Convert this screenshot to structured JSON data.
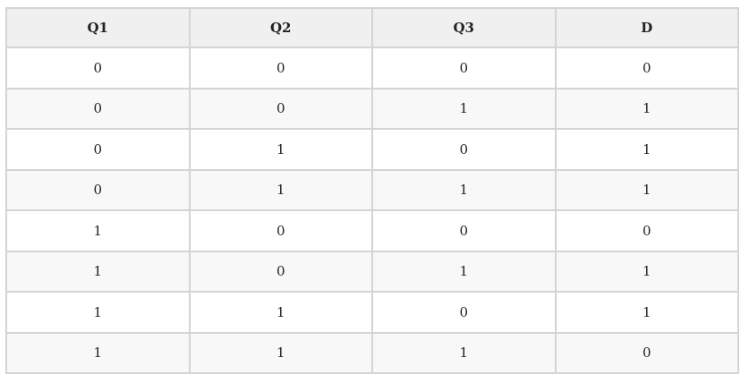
{
  "table": {
    "header": [
      "Q1",
      "Q2",
      "Q3",
      "D"
    ],
    "rows": [
      [
        0,
        0,
        0,
        0
      ],
      [
        0,
        0,
        1,
        1
      ],
      [
        0,
        1,
        0,
        1
      ],
      [
        0,
        1,
        1,
        1
      ],
      [
        1,
        0,
        0,
        0
      ],
      [
        1,
        0,
        1,
        1
      ],
      [
        1,
        1,
        0,
        1
      ],
      [
        1,
        1,
        1,
        0
      ]
    ]
  }
}
